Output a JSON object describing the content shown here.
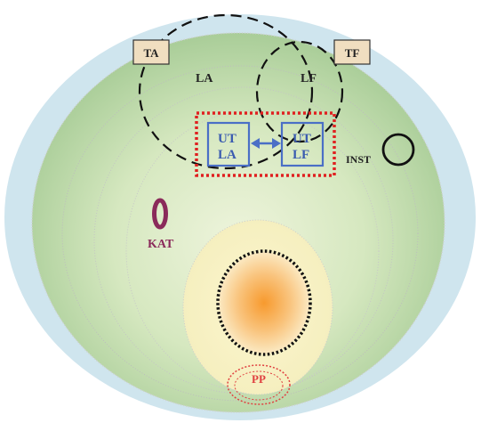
{
  "labels": {
    "ta": "TA",
    "tf": "TF",
    "la": "LA",
    "lf": "LF",
    "ut_la_line1": "UT",
    "ut_la_line2": "LA",
    "ut_lf_line1": "UT",
    "ut_lf_line2": "LF",
    "inst": "INST",
    "kat": "KAT",
    "pp": "PP"
  },
  "colors": {
    "background": "#ffffff",
    "outer_ring": "#cfe5ee",
    "green_outer": "#b4d4a4",
    "green_inner": "#dcebc9",
    "yellow_outer": "#f8f3c6",
    "core": "#f7a23c",
    "blue_box": "#4a6fc6",
    "blue_text": "#3b5cb0",
    "red_dotted": "#e02020",
    "kat": "#8a2a5a",
    "pp": "#e04040",
    "dark_text": "#222222",
    "label_box": "#f0dec0"
  }
}
